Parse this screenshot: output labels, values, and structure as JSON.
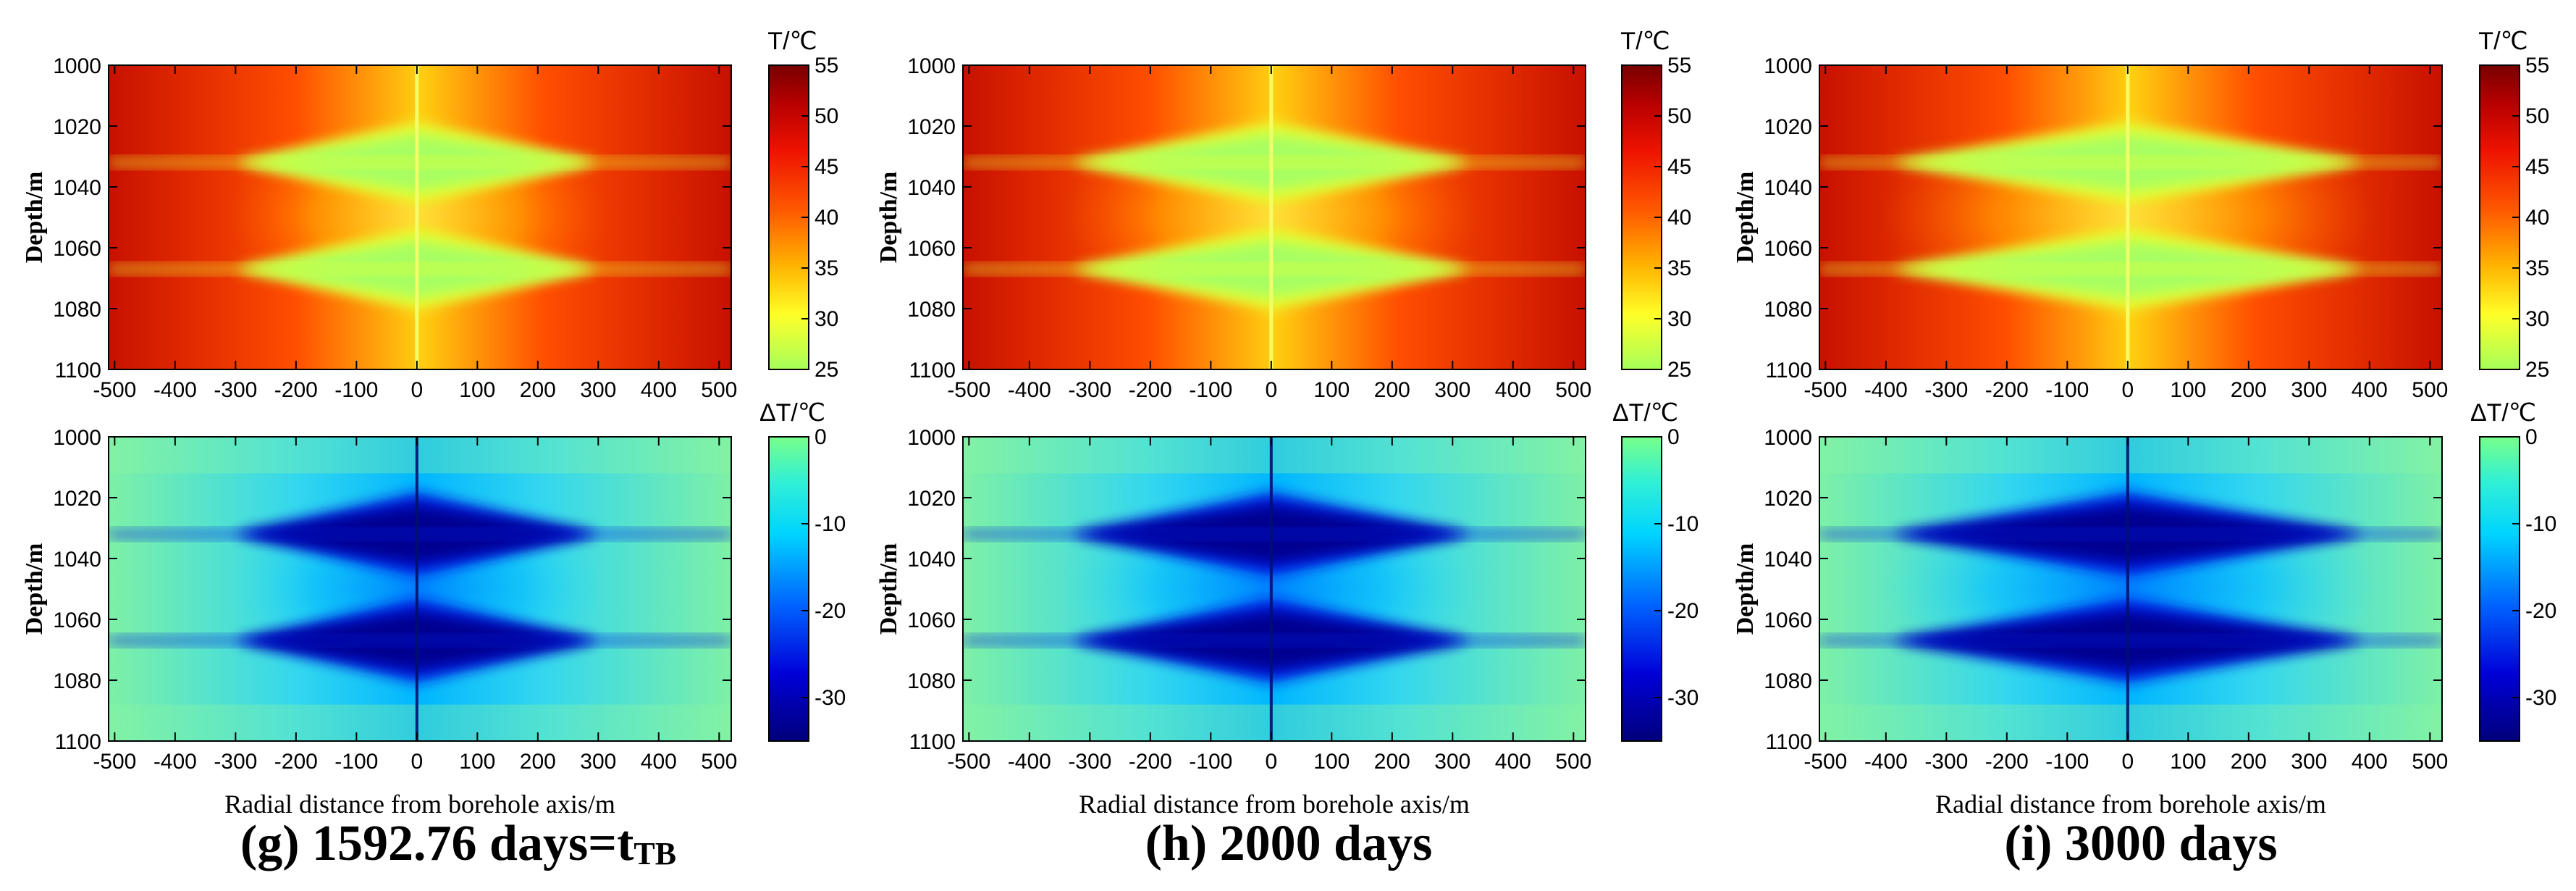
{
  "figure": {
    "captions": [
      {
        "main": "(g) 1592.76 days=t",
        "sub": "TB"
      },
      {
        "main": "(h) 2000 days",
        "sub": ""
      },
      {
        "main": "(i) 3000 days",
        "sub": ""
      }
    ],
    "xlabel": "Radial distance from borehole axis/m",
    "ylabel": "Depth/m"
  },
  "chart_data": {
    "type": "heatmap",
    "x_ticks": [
      -500,
      -400,
      -300,
      -200,
      -100,
      0,
      100,
      200,
      300,
      400,
      500
    ],
    "xlim": [
      -510,
      520
    ],
    "y_ticks": [
      1000,
      1020,
      1040,
      1060,
      1080,
      1100
    ],
    "ylim": [
      1000,
      1100
    ],
    "borehole_x": 0,
    "flow_zone_depths": [
      1032,
      1067
    ],
    "panels": [
      {
        "id": "g",
        "time_days": 1592.76,
        "field": "T",
        "colorbar_label": "T/℃",
        "clim": [
          25,
          55
        ],
        "cticks": [
          25,
          30,
          35,
          40,
          45,
          50,
          55
        ],
        "colormap": "green-yellow-red",
        "cooled_half_width_m": 300
      },
      {
        "id": "g",
        "time_days": 1592.76,
        "field": "dT",
        "colorbar_label": "ΔT/℃",
        "clim": [
          -35,
          0
        ],
        "cticks": [
          -30,
          -20,
          -10,
          0
        ],
        "colormap": "navy-blue-cyan-green",
        "cooled_half_width_m": 300
      },
      {
        "id": "h",
        "time_days": 2000,
        "field": "T",
        "colorbar_label": "T/℃",
        "clim": [
          25,
          55
        ],
        "cticks": [
          25,
          30,
          35,
          40,
          45,
          50,
          55
        ],
        "colormap": "green-yellow-red",
        "cooled_half_width_m": 330
      },
      {
        "id": "h",
        "time_days": 2000,
        "field": "dT",
        "colorbar_label": "ΔT/℃",
        "clim": [
          -35,
          0
        ],
        "cticks": [
          -30,
          -20,
          -10,
          0
        ],
        "colormap": "navy-blue-cyan-green",
        "cooled_half_width_m": 330
      },
      {
        "id": "i",
        "time_days": 3000,
        "field": "T",
        "colorbar_label": "T/℃",
        "clim": [
          25,
          55
        ],
        "cticks": [
          25,
          30,
          35,
          40,
          45,
          50,
          55
        ],
        "colormap": "green-yellow-red",
        "cooled_half_width_m": 390
      },
      {
        "id": "i",
        "time_days": 3000,
        "field": "dT",
        "colorbar_label": "ΔT/℃",
        "clim": [
          -35,
          0
        ],
        "cticks": [
          -30,
          -20,
          -10,
          0
        ],
        "colormap": "navy-blue-cyan-green",
        "cooled_half_width_m": 390
      }
    ]
  }
}
